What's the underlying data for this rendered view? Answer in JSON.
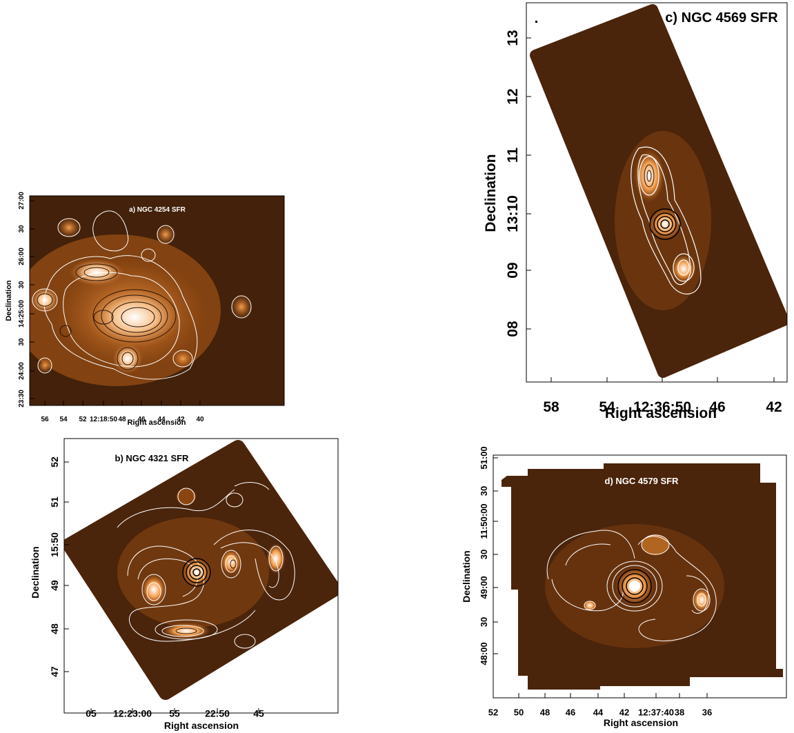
{
  "panels": [
    {
      "id": "a",
      "title": "a) NGC 4254 SFR",
      "xlabel": "Right ascension",
      "ylabel": "Declination",
      "xticks": [
        "56",
        "54",
        "52",
        "12:18:50",
        "48",
        "46",
        "44",
        "42",
        "40"
      ],
      "yticks": [
        "27:00",
        "30",
        "26:00",
        "30",
        "14:25:00",
        "30",
        "24:00",
        "23:30"
      ],
      "colormap": [
        "#3f1e08",
        "#b65c16",
        "#f5a050",
        "#ffffff"
      ]
    },
    {
      "id": "b",
      "title": "b) NGC 4321 SFR",
      "xlabel": "Right ascension",
      "ylabel": "Declination",
      "xticks": [
        "05",
        "12:23:00",
        "55",
        "22:50",
        "45"
      ],
      "yticks": [
        "52",
        "51",
        "15:50",
        "49",
        "48",
        "47"
      ],
      "colormap": [
        "#3f1e08",
        "#b65c16",
        "#f5a050",
        "#ffffff"
      ]
    },
    {
      "id": "c",
      "title": "c) NGC 4569 SFR",
      "xlabel": "Right ascension",
      "ylabel": "Declination",
      "xticks": [
        "58",
        "54",
        "12:36:50",
        "46",
        "42"
      ],
      "yticks": [
        "13",
        "12",
        "11",
        "13:10",
        "09",
        "08"
      ],
      "colormap": [
        "#3f1e08",
        "#b65c16",
        "#f5a050",
        "#ffffff"
      ]
    },
    {
      "id": "d",
      "title": "d) NGC 4579 SFR",
      "xlabel": "Right ascension",
      "ylabel": "Declination",
      "xticks": [
        "52",
        "50",
        "48",
        "46",
        "44",
        "42",
        "12:37:40",
        "38",
        "36"
      ],
      "yticks": [
        "51:00",
        "30",
        "11:50:00",
        "30",
        "49:00",
        "30",
        "48:00"
      ],
      "colormap": [
        "#3f1e08",
        "#b65c16",
        "#f5a050",
        "#ffffff"
      ]
    }
  ]
}
